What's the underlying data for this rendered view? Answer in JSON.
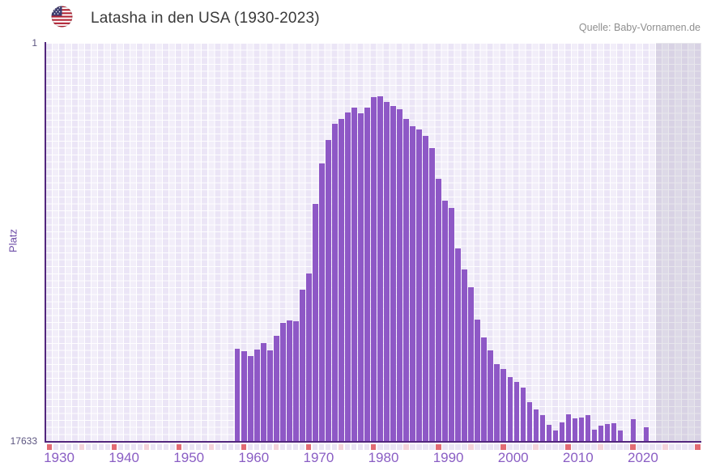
{
  "header": {
    "title": "Latasha in den USA (1930-2023)",
    "source": "Quelle: Baby-Vornamen.de"
  },
  "chart_data": {
    "type": "bar",
    "title": "Latasha in den USA (1930-2023)",
    "ylabel": "Platz",
    "yaxis": {
      "top_label": "1",
      "bottom_label": "17633",
      "top_value": 1,
      "bottom_value": 17633
    },
    "x_axis": {
      "start": 1930,
      "end": 2030,
      "data_end": 2023,
      "no_data_overlay_from": 2024
    },
    "x_ticks": [
      "1930",
      "1940",
      "1950",
      "1960",
      "1970",
      "1980",
      "1990",
      "2000",
      "2010",
      "2020"
    ],
    "bar_value_unit": "height_frac = bar height as fraction of axis (rank 1 = 1.0, rank 17633 = 0)",
    "bars": [
      {
        "year": 1959,
        "height_frac": 0.232
      },
      {
        "year": 1960,
        "height_frac": 0.226
      },
      {
        "year": 1961,
        "height_frac": 0.213
      },
      {
        "year": 1962,
        "height_frac": 0.23
      },
      {
        "year": 1963,
        "height_frac": 0.246
      },
      {
        "year": 1964,
        "height_frac": 0.228
      },
      {
        "year": 1965,
        "height_frac": 0.264
      },
      {
        "year": 1966,
        "height_frac": 0.297
      },
      {
        "year": 1967,
        "height_frac": 0.303
      },
      {
        "year": 1968,
        "height_frac": 0.301
      },
      {
        "year": 1969,
        "height_frac": 0.38
      },
      {
        "year": 1970,
        "height_frac": 0.421
      },
      {
        "year": 1971,
        "height_frac": 0.596
      },
      {
        "year": 1972,
        "height_frac": 0.697
      },
      {
        "year": 1973,
        "height_frac": 0.756
      },
      {
        "year": 1974,
        "height_frac": 0.797
      },
      {
        "year": 1975,
        "height_frac": 0.809
      },
      {
        "year": 1976,
        "height_frac": 0.825
      },
      {
        "year": 1977,
        "height_frac": 0.837
      },
      {
        "year": 1978,
        "height_frac": 0.823
      },
      {
        "year": 1979,
        "height_frac": 0.837
      },
      {
        "year": 1980,
        "height_frac": 0.864
      },
      {
        "year": 1981,
        "height_frac": 0.866
      },
      {
        "year": 1982,
        "height_frac": 0.852
      },
      {
        "year": 1983,
        "height_frac": 0.841
      },
      {
        "year": 1984,
        "height_frac": 0.833
      },
      {
        "year": 1985,
        "height_frac": 0.809
      },
      {
        "year": 1986,
        "height_frac": 0.791
      },
      {
        "year": 1987,
        "height_frac": 0.783
      },
      {
        "year": 1988,
        "height_frac": 0.766
      },
      {
        "year": 1989,
        "height_frac": 0.736
      },
      {
        "year": 1990,
        "height_frac": 0.659
      },
      {
        "year": 1991,
        "height_frac": 0.604
      },
      {
        "year": 1992,
        "height_frac": 0.585
      },
      {
        "year": 1993,
        "height_frac": 0.484
      },
      {
        "year": 1994,
        "height_frac": 0.431
      },
      {
        "year": 1995,
        "height_frac": 0.386
      },
      {
        "year": 1996,
        "height_frac": 0.305
      },
      {
        "year": 1997,
        "height_frac": 0.26
      },
      {
        "year": 1998,
        "height_frac": 0.228
      },
      {
        "year": 1999,
        "height_frac": 0.193
      },
      {
        "year": 2000,
        "height_frac": 0.181
      },
      {
        "year": 2001,
        "height_frac": 0.161
      },
      {
        "year": 2002,
        "height_frac": 0.148
      },
      {
        "year": 2003,
        "height_frac": 0.134
      },
      {
        "year": 2004,
        "height_frac": 0.098
      },
      {
        "year": 2005,
        "height_frac": 0.079
      },
      {
        "year": 2006,
        "height_frac": 0.065
      },
      {
        "year": 2007,
        "height_frac": 0.041
      },
      {
        "year": 2008,
        "height_frac": 0.026
      },
      {
        "year": 2009,
        "height_frac": 0.047
      },
      {
        "year": 2010,
        "height_frac": 0.067
      },
      {
        "year": 2011,
        "height_frac": 0.057
      },
      {
        "year": 2012,
        "height_frac": 0.059
      },
      {
        "year": 2013,
        "height_frac": 0.065
      },
      {
        "year": 2014,
        "height_frac": 0.028
      },
      {
        "year": 2015,
        "height_frac": 0.039
      },
      {
        "year": 2016,
        "height_frac": 0.043
      },
      {
        "year": 2017,
        "height_frac": 0.045
      },
      {
        "year": 2018,
        "height_frac": 0.026
      },
      {
        "year": 2020,
        "height_frac": 0.055
      },
      {
        "year": 2022,
        "height_frac": 0.035
      }
    ],
    "missing_years": "1930-1958, 2019, 2021, 2023 (no bar)"
  },
  "colors": {
    "bar": "#8e58c6",
    "axis": "#52267d",
    "tick_decade": "#e26b73",
    "tick_half_decade": "#f4d2d9",
    "tick_default": "#eae4f4",
    "year_label": "#8a5ec4"
  }
}
